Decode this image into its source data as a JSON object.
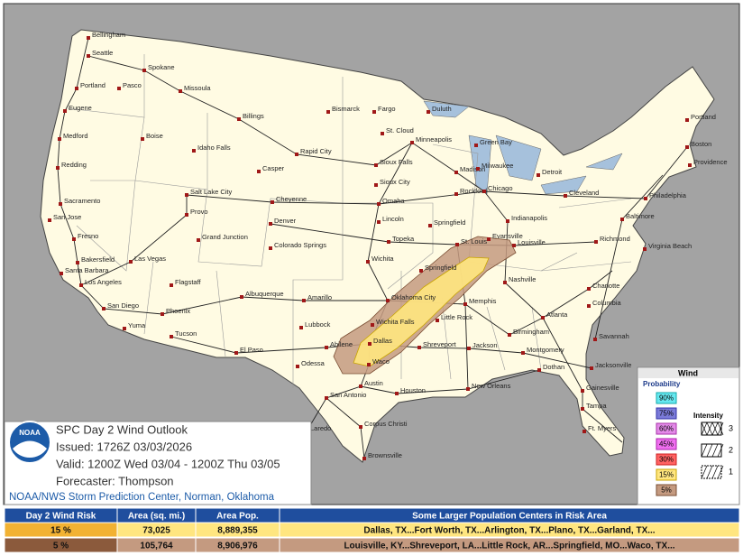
{
  "map": {
    "cities": [
      "Bellingham",
      "Seattle",
      "Spokane",
      "Portland",
      "Pasco",
      "Missoula",
      "Eugene",
      "Medford",
      "Boise",
      "Idaho Falls",
      "Billings",
      "Bismarck",
      "Fargo",
      "Duluth",
      "St. Cloud",
      "Minneapolis",
      "Green Bay",
      "Rapid City",
      "Casper",
      "Sioux Falls",
      "Madison",
      "Milwaukee",
      "Detroit",
      "Redding",
      "Sacramento",
      "San Jose",
      "Fresno",
      "Salt Lake City",
      "Provo",
      "Cheyenne",
      "Sioux City",
      "Omaha",
      "Rockford",
      "Chicago",
      "Cleveland",
      "Lincoln",
      "Springfield",
      "Denver",
      "Grand Junction",
      "Colorado Springs",
      "Topeka",
      "Bakersfield",
      "Las Vegas",
      "Santa Barbara",
      "Los Angeles",
      "San Diego",
      "Flagstaff",
      "Wichita",
      "St. Louis",
      "Evansville",
      "Louisville",
      "Indianapolis",
      "Springfield",
      "Nashville",
      "Albuquerque",
      "Amarillo",
      "Oklahoma City",
      "Memphis",
      "Phoenix",
      "Yuma",
      "Tucson",
      "Lubbock",
      "Wichita Falls",
      "Little Rock",
      "Atlanta",
      "Birmingham",
      "El Paso",
      "Abilene",
      "Dallas",
      "Shreveport",
      "Jackson",
      "Montgomery",
      "Odessa",
      "Waco",
      "Austin",
      "Houston",
      "New Orleans",
      "Dothan",
      "San Antonio",
      "Corpus Christi",
      "Laredo",
      "Brownsville",
      "Jacksonville",
      "Savannah",
      "Gainesville",
      "Tampa",
      "Ft. Myers",
      "Columbia",
      "Charlotte",
      "Richmond",
      "Virginia Beach",
      "Baltimore",
      "Philadelphia",
      "Providence",
      "Boston",
      "Portland"
    ]
  },
  "info": {
    "logo": "NOAA",
    "title": "SPC Day 2 Wind Outlook",
    "issued": "Issued: 1726Z 03/03/2026",
    "valid": "Valid: 1200Z Wed 03/04 - 1200Z Thu 03/05",
    "forecaster": "Forecaster: Thompson",
    "office": "NOAA/NWS Storm Prediction Center, Norman, Oklahoma"
  },
  "legend": {
    "title": "Wind",
    "probability": "Probability",
    "levels": [
      "90%",
      "75%",
      "60%",
      "45%",
      "30%",
      "15%",
      "5%"
    ],
    "intensity": "Intensity",
    "intensity_levels": [
      "3",
      "2",
      "1"
    ]
  },
  "table": {
    "header": [
      "Day 2 Wind Risk",
      "Area (sq. mi.)",
      "Area Pop.",
      "Some Larger Population Centers in Risk Area"
    ],
    "rows": [
      [
        "15 %",
        "73,025",
        "8,889,355",
        "Dallas, TX...Fort Worth, TX...Arlington, TX...Plano, TX...Garland, TX..."
      ],
      [
        "5 %",
        "105,764",
        "8,906,976",
        "Louisville, KY...Shreveport, LA...Little Rock, AR...Springfield, MO...Waco, TX..."
      ]
    ]
  }
}
